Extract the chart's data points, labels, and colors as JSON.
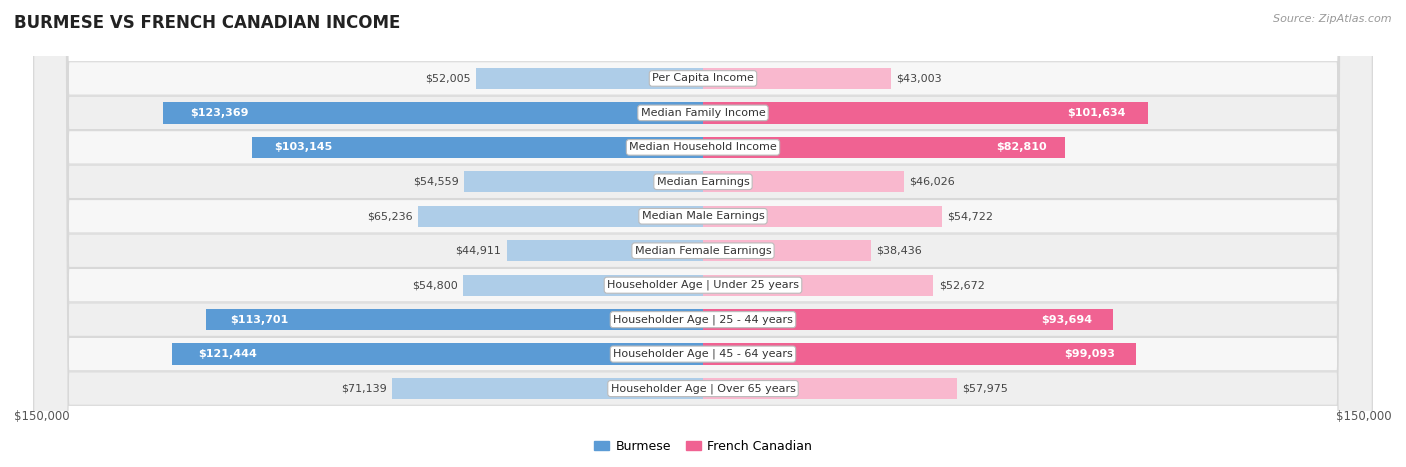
{
  "title": "BURMESE VS FRENCH CANADIAN INCOME",
  "source": "Source: ZipAtlas.com",
  "categories": [
    "Per Capita Income",
    "Median Family Income",
    "Median Household Income",
    "Median Earnings",
    "Median Male Earnings",
    "Median Female Earnings",
    "Householder Age | Under 25 years",
    "Householder Age | 25 - 44 years",
    "Householder Age | 45 - 64 years",
    "Householder Age | Over 65 years"
  ],
  "burmese": [
    52005,
    123369,
    103145,
    54559,
    65236,
    44911,
    54800,
    113701,
    121444,
    71139
  ],
  "french_canadian": [
    43003,
    101634,
    82810,
    46026,
    54722,
    38436,
    52672,
    93694,
    99093,
    57975
  ],
  "max_val": 150000,
  "burmese_color_light": "#aecde8",
  "burmese_color_dark": "#5b9bd5",
  "french_canadian_color_light": "#f9b8ce",
  "french_canadian_color_dark": "#f06292",
  "label_inside_threshold": 80000,
  "bar_height": 0.62,
  "row_colors": [
    "#f7f7f7",
    "#efefef"
  ],
  "row_border_color": "#d8d8d8",
  "xlabel_left": "$150,000",
  "xlabel_right": "$150,000",
  "legend_burmese": "Burmese",
  "legend_french_canadian": "French Canadian",
  "title_fontsize": 12,
  "label_fontsize": 8,
  "cat_fontsize": 8
}
